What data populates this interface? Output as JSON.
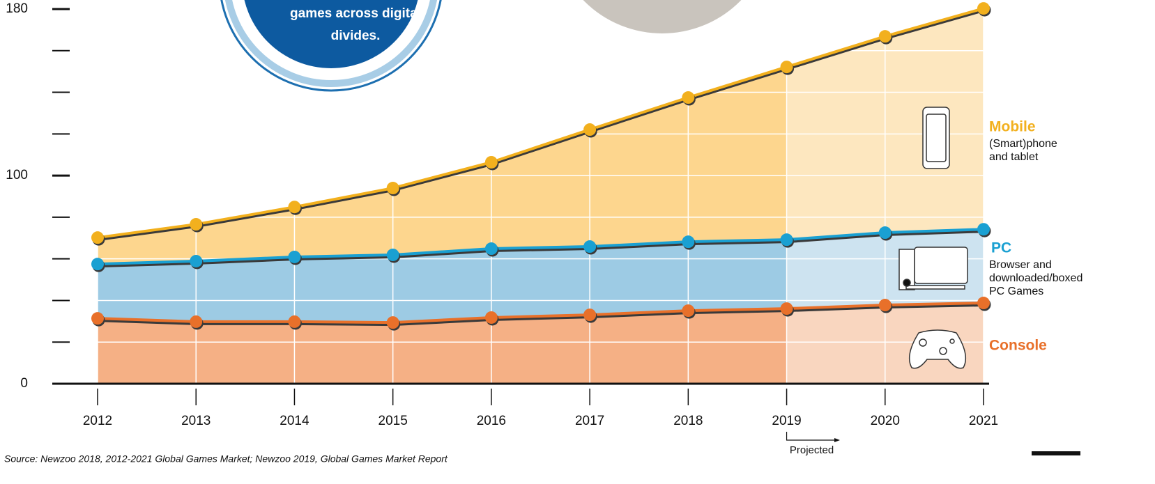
{
  "callout": [
    "games across digital",
    "divides."
  ],
  "chart_data": {
    "type": "stacked-area",
    "x": [
      2012,
      2013,
      2014,
      2015,
      2016,
      2017,
      2018,
      2019,
      2020,
      2021
    ],
    "xlim": [
      2012,
      2021
    ],
    "ylim": [
      0,
      180
    ],
    "yticks": [
      0,
      100,
      180
    ],
    "minor_yticks": [
      20,
      40,
      60,
      80,
      120,
      140,
      160
    ],
    "grid": true,
    "projected_from": 2019,
    "annotation": "Projected",
    "series": [
      {
        "name": "Console",
        "description": [],
        "color": "#e8702a",
        "fill": "#f5b085",
        "projected_fill": "#f9d6bf",
        "values": [
          31.4,
          29.8,
          29.8,
          29.4,
          31.8,
          33.1,
          35.1,
          36.1,
          37.8,
          38.8
        ]
      },
      {
        "name": "PC",
        "description": [
          "Browser and",
          "downloaded/boxed",
          "PC Games"
        ],
        "color": "#1aa0d2",
        "fill": "#9dcbe4",
        "projected_fill": "#cde3f0",
        "values": [
          26.1,
          29.1,
          31.1,
          32.5,
          33.1,
          32.8,
          33.1,
          33.1,
          34.8,
          35.4
        ]
      },
      {
        "name": "Mobile",
        "description": [
          "(Smart)phone",
          "and tablet"
        ],
        "color": "#f2b01e",
        "fill": "#fdd68e",
        "projected_fill": "#fde7bf",
        "values": [
          12.7,
          17.7,
          24.0,
          32.1,
          41.5,
          56.2,
          69.3,
          83.0,
          94.3,
          106.1
        ]
      }
    ]
  },
  "source": "Source: Newzoo 2018, 2012-2021 Global Games Market; Newzoo 2019, Global Games Market Report"
}
